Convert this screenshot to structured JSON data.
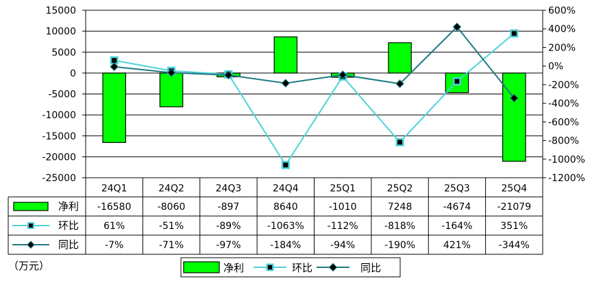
{
  "chart_data": {
    "type": "bar",
    "unit_label": "（万元）",
    "categories": [
      "24Q1",
      "24Q2",
      "24Q3",
      "24Q4",
      "25Q1",
      "25Q2",
      "25Q3",
      "25Q4"
    ],
    "y_left": {
      "lim": [
        -25000,
        15000
      ],
      "ticks": [
        "15000",
        "10000",
        "5000",
        "0",
        "-5000",
        "-10000",
        "-15000",
        "-20000",
        "-25000"
      ]
    },
    "y_right": {
      "lim": [
        -1200,
        600
      ],
      "ticks": [
        "600%",
        "400%",
        "200%",
        "0%",
        "-200%",
        "-400%",
        "-600%",
        "-800%",
        "-1000%",
        "-1200%"
      ]
    },
    "grid": true,
    "legend": "bottom",
    "series": [
      {
        "name": "净利",
        "type": "bar",
        "axis": "left",
        "color": "#00ff00",
        "values": [
          -16580,
          -8060,
          -897,
          8640,
          -1010,
          7248,
          -4674,
          -21079
        ],
        "labels": [
          "-16580",
          "-8060",
          "-897",
          "8640",
          "-1010",
          "7248",
          "-4674",
          "-21079"
        ]
      },
      {
        "name": "环比",
        "type": "line",
        "axis": "right",
        "color": "#4dd2d8",
        "marker": "square",
        "values": [
          61,
          -51,
          -89,
          -1063,
          -112,
          -818,
          -164,
          351
        ],
        "labels": [
          "61%",
          "-51%",
          "-89%",
          "-1063%",
          "-112%",
          "-818%",
          "-164%",
          "351%"
        ]
      },
      {
        "name": "同比",
        "type": "line",
        "axis": "right",
        "color": "#1f7a80",
        "marker": "diamond",
        "values": [
          -7,
          -71,
          -97,
          -184,
          -94,
          -190,
          421,
          -344
        ],
        "labels": [
          "-7%",
          "-71%",
          "-97%",
          "-184%",
          "-94%",
          "-190%",
          "421%",
          "-344%"
        ]
      }
    ]
  }
}
